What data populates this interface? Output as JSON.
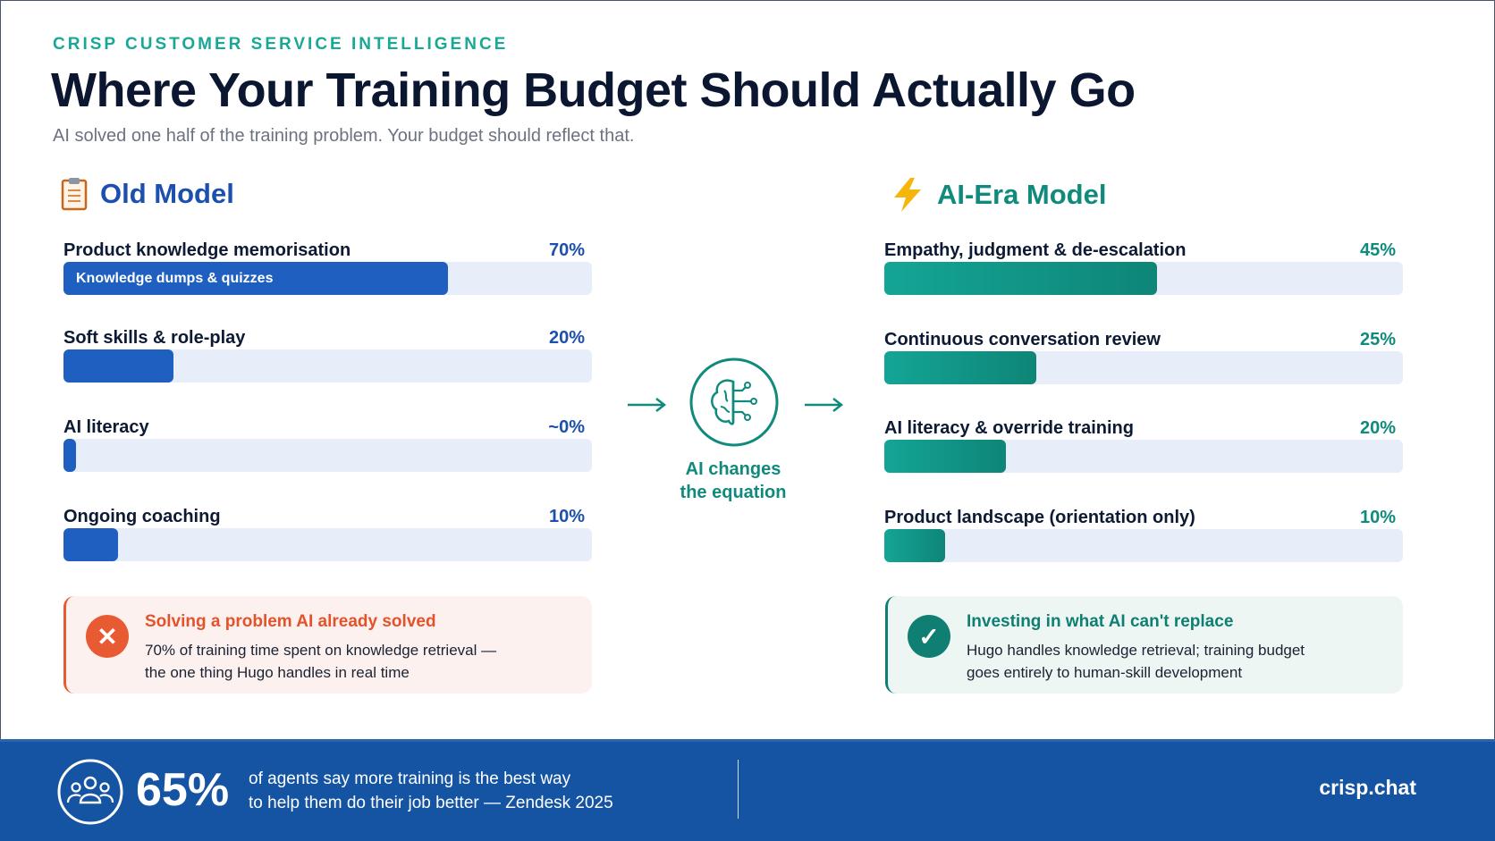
{
  "header": {
    "eyebrow": "CRISP CUSTOMER SERVICE INTELLIGENCE",
    "title": "Where Your Training Budget Should Actually Go",
    "subtitle": "AI solved one half of the training problem. Your budget should reflect that."
  },
  "old_model": {
    "title": "Old Model",
    "icon": "clipboard-icon",
    "color": "#1f5fbf",
    "rows": [
      {
        "label": "Product knowledge memorisation",
        "pct_label": "70%",
        "value": 70,
        "bar_text": "Knowledge dumps & quizzes"
      },
      {
        "label": "Soft skills & role-play",
        "pct_label": "20%",
        "value": 20,
        "bar_text": ""
      },
      {
        "label": "AI literacy",
        "pct_label": "~0%",
        "value": 0,
        "bar_text": ""
      },
      {
        "label": "Ongoing coaching",
        "pct_label": "10%",
        "value": 10,
        "bar_text": ""
      }
    ],
    "callout": {
      "title": "Solving a problem AI already solved",
      "line1": "70% of training time spent on knowledge retrieval —",
      "line2": "the one thing Hugo handles in real time",
      "icon": "x-circle-icon",
      "color": "#e85a32"
    }
  },
  "center": {
    "icon": "brain-circuit-icon",
    "line1": "AI changes",
    "line2": "the equation",
    "color": "#0f8a7c"
  },
  "ai_model": {
    "title": "AI-Era Model",
    "icon": "lightning-icon",
    "color": "#0f8a7c",
    "rows": [
      {
        "label": "Empathy, judgment & de-escalation",
        "pct_label": "45%",
        "value": 45
      },
      {
        "label": "Continuous conversation review",
        "pct_label": "25%",
        "value": 25
      },
      {
        "label": "AI literacy & override training",
        "pct_label": "20%",
        "value": 20
      },
      {
        "label": "Product landscape (orientation only)",
        "pct_label": "10%",
        "value": 10
      }
    ],
    "callout": {
      "title": "Investing in what AI can't replace",
      "line1": "Hugo handles knowledge retrieval; training budget",
      "line2": "goes entirely to human-skill development",
      "icon": "check-circle-icon",
      "color": "#0e7f72"
    }
  },
  "footer": {
    "icon": "people-group-icon",
    "stat": "65%",
    "line1": "of agents say more training is the best way",
    "line2": "to help them do their job better — Zendesk 2025",
    "brand": "crisp.chat",
    "color": "#1554a3"
  }
}
